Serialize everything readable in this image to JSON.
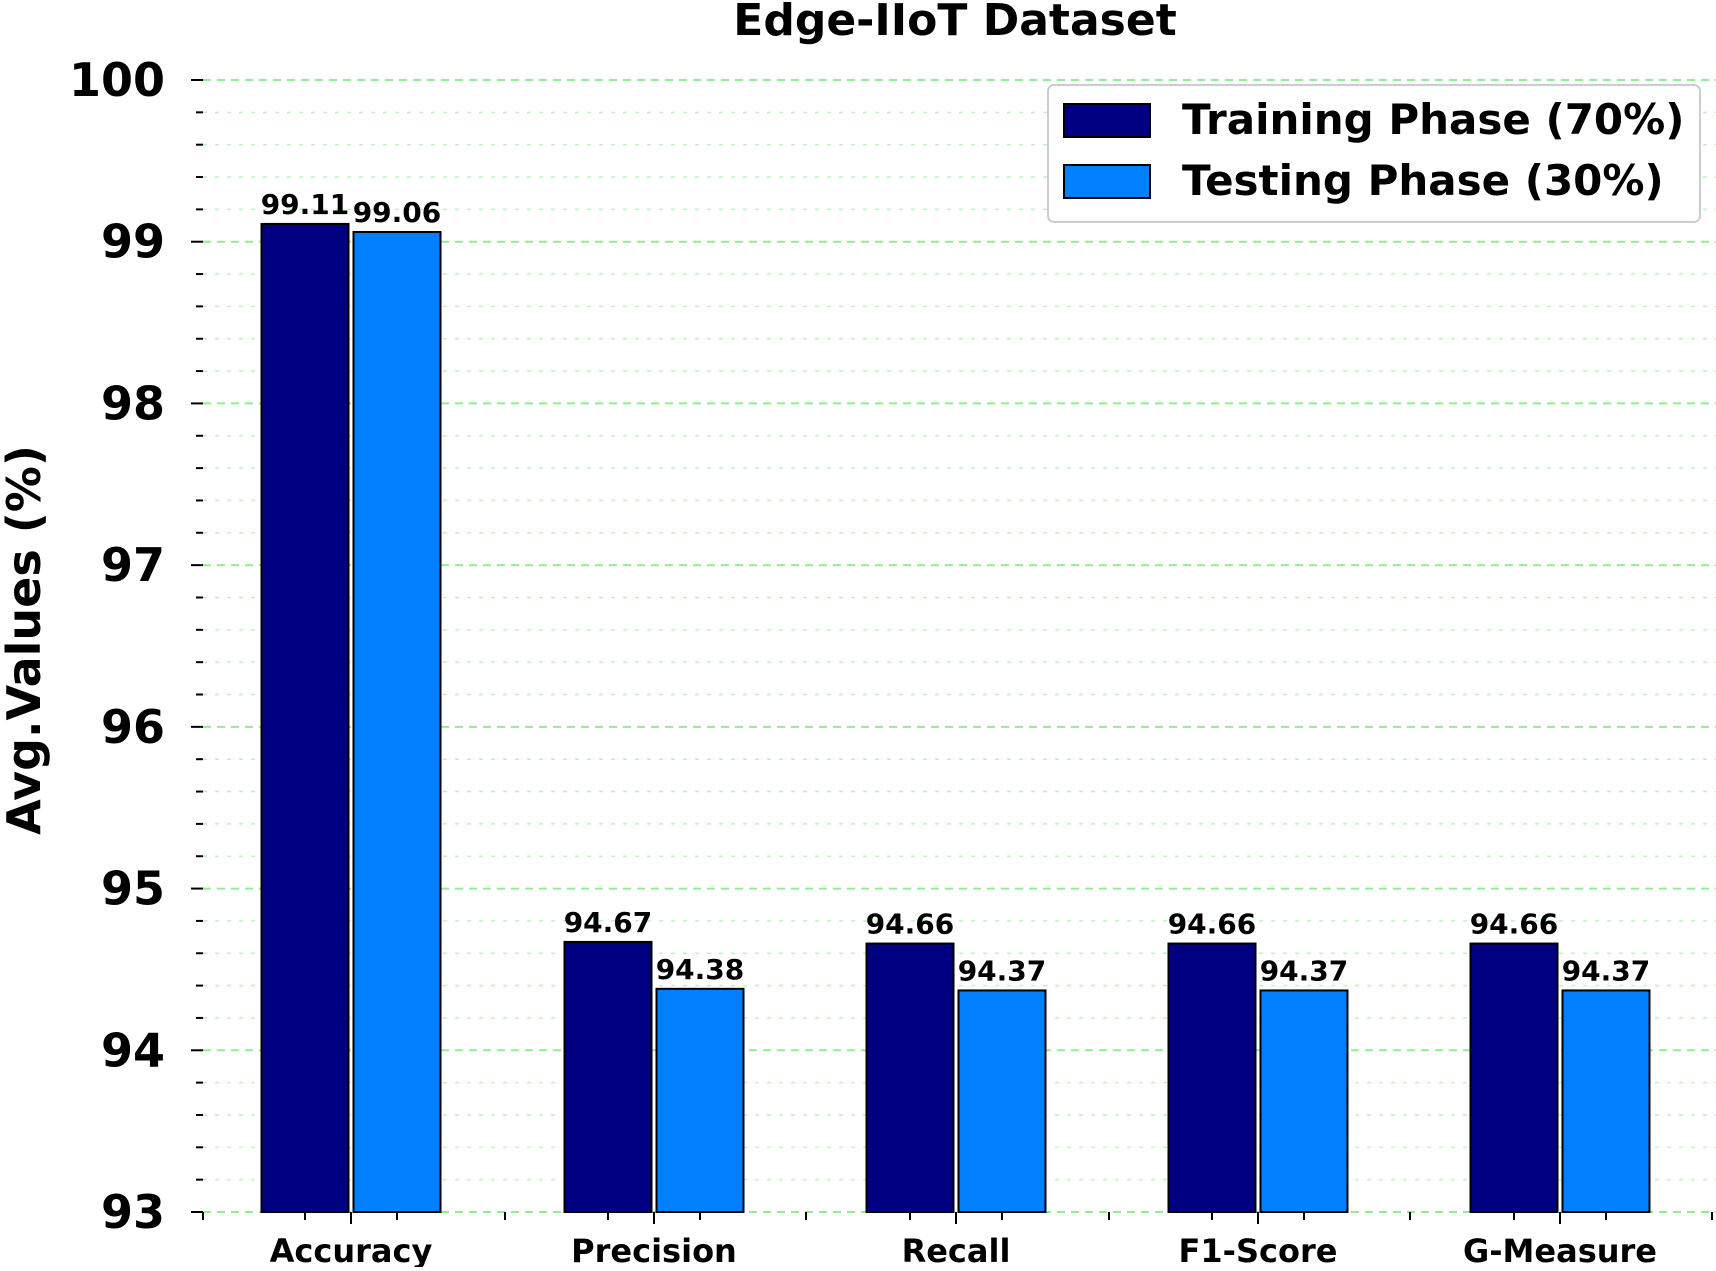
{
  "chart_data": {
    "type": "bar",
    "title": "Edge-IIoT Dataset",
    "xlabel": "",
    "ylabel": "Avg.Values (%)",
    "ylim": [
      93,
      100
    ],
    "yticks": [
      93,
      94,
      95,
      96,
      97,
      98,
      99,
      100
    ],
    "grid": true,
    "legend_position": "top-right",
    "categories": [
      "Accuracy",
      "Precision",
      "Recall",
      "F1-Score",
      "G-Measure"
    ],
    "series": [
      {
        "name": "Training Phase (70%)",
        "color": "#000080",
        "values": [
          99.11,
          94.67,
          94.66,
          94.66,
          94.66
        ]
      },
      {
        "name": "Testing Phase (30%)",
        "color": "#0080ff",
        "values": [
          99.06,
          94.38,
          94.37,
          94.37,
          94.37
        ]
      }
    ],
    "data_labels": [
      [
        "99.11",
        "94.67",
        "94.66",
        "94.66",
        "94.66"
      ],
      [
        "99.06",
        "94.38",
        "94.37",
        "94.37",
        "94.37"
      ]
    ],
    "grid_color": "#90ee90"
  }
}
